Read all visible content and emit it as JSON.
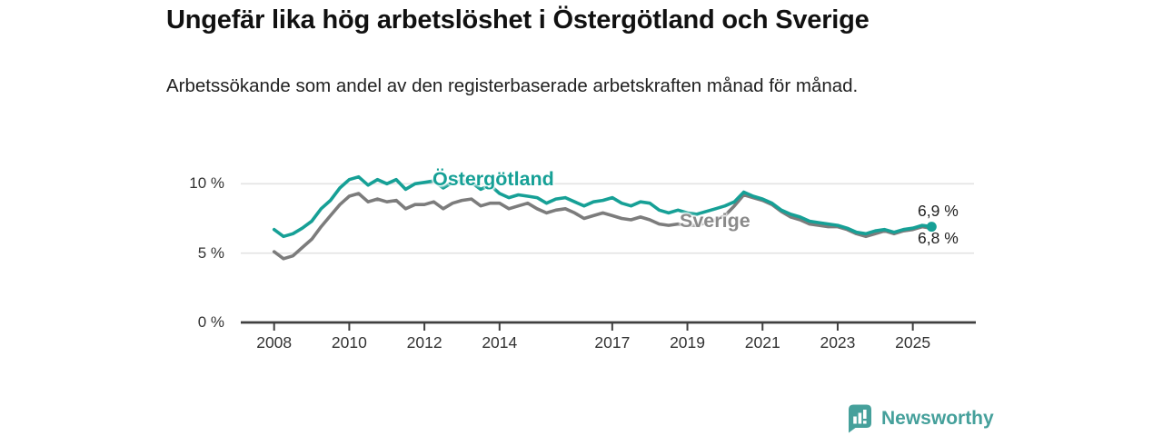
{
  "header": {
    "title": "Ungefär lika hög arbetslöshet i Östergötland och Sverige",
    "subtitle": "Arbetssökande som andel av den registerbaserade arbetskraften månad för månad."
  },
  "chart_data": {
    "type": "line",
    "title": "Ungefär lika hög arbetslöshet i Östergötland och Sverige",
    "subtitle": "Arbetssökande som andel av den registerbaserade arbetskraften månad för månad.",
    "unit": "%",
    "x_start": 2008,
    "x_step": 0.25,
    "x_end": 2025.5,
    "ylim": [
      0,
      11
    ],
    "grid": "horizontal",
    "grid_color": "#e3e3e3",
    "axis_color": "#3f3f3f",
    "y_ticks": [
      {
        "value": 0,
        "label": "0 %"
      },
      {
        "value": 5,
        "label": "5 %"
      },
      {
        "value": 10,
        "label": "10 %"
      }
    ],
    "x_ticks": [
      {
        "year": 2008,
        "label": "2008"
      },
      {
        "year": 2010,
        "label": "2010"
      },
      {
        "year": 2012,
        "label": "2012"
      },
      {
        "year": 2014,
        "label": "2014"
      },
      {
        "year": 2017,
        "label": "2017"
      },
      {
        "year": 2019,
        "label": "2019"
      },
      {
        "year": 2021,
        "label": "2021"
      },
      {
        "year": 2023,
        "label": "2023"
      },
      {
        "year": 2025,
        "label": "2025"
      }
    ],
    "series": [
      {
        "name": "Sverige",
        "color": "#7c7c7c",
        "end_label": "6,8 %",
        "end_value": 6.8,
        "values": [
          5.1,
          4.6,
          4.8,
          5.4,
          6.0,
          6.9,
          7.7,
          8.5,
          9.1,
          9.3,
          8.7,
          8.9,
          8.7,
          8.8,
          8.2,
          8.5,
          8.5,
          8.7,
          8.2,
          8.6,
          8.8,
          8.9,
          8.4,
          8.6,
          8.6,
          8.2,
          8.4,
          8.6,
          8.2,
          7.9,
          8.1,
          8.2,
          7.9,
          7.5,
          7.7,
          7.9,
          7.7,
          7.5,
          7.4,
          7.6,
          7.4,
          7.1,
          7.0,
          7.1,
          7.0,
          7.0,
          7.2,
          7.4,
          7.7,
          8.4,
          9.2,
          9.0,
          8.8,
          8.5,
          8.0,
          7.6,
          7.4,
          7.1,
          7.0,
          6.9,
          6.9,
          6.7,
          6.4,
          6.2,
          6.4,
          6.6,
          6.4,
          6.6,
          6.7,
          6.9,
          6.8
        ]
      },
      {
        "name": "Östergötland",
        "color": "#16a096",
        "end_label": "6,9 %",
        "end_value": 6.9,
        "end_dot": true,
        "values": [
          6.7,
          6.2,
          6.4,
          6.8,
          7.3,
          8.2,
          8.8,
          9.7,
          10.3,
          10.5,
          9.9,
          10.3,
          10.0,
          10.3,
          9.6,
          10.0,
          10.1,
          10.2,
          9.7,
          10.1,
          10.2,
          10.1,
          9.6,
          9.9,
          9.3,
          9.0,
          9.2,
          9.1,
          9.0,
          8.6,
          8.9,
          9.0,
          8.7,
          8.4,
          8.7,
          8.8,
          9.0,
          8.6,
          8.4,
          8.7,
          8.6,
          8.1,
          7.9,
          8.1,
          7.9,
          7.8,
          8.0,
          8.2,
          8.4,
          8.7,
          9.4,
          9.1,
          8.9,
          8.6,
          8.1,
          7.8,
          7.6,
          7.3,
          7.2,
          7.1,
          7.0,
          6.8,
          6.5,
          6.4,
          6.6,
          6.7,
          6.5,
          6.7,
          6.8,
          7.0,
          6.9
        ]
      }
    ],
    "series_labels": {
      "ostergotland": "Östergötland",
      "sverige": "Sverige"
    },
    "end_labels": {
      "top": "6,9 %",
      "bottom": "6,8 %"
    }
  },
  "footer": {
    "brand": "Newsworthy",
    "brand_color": "#45a09b"
  }
}
